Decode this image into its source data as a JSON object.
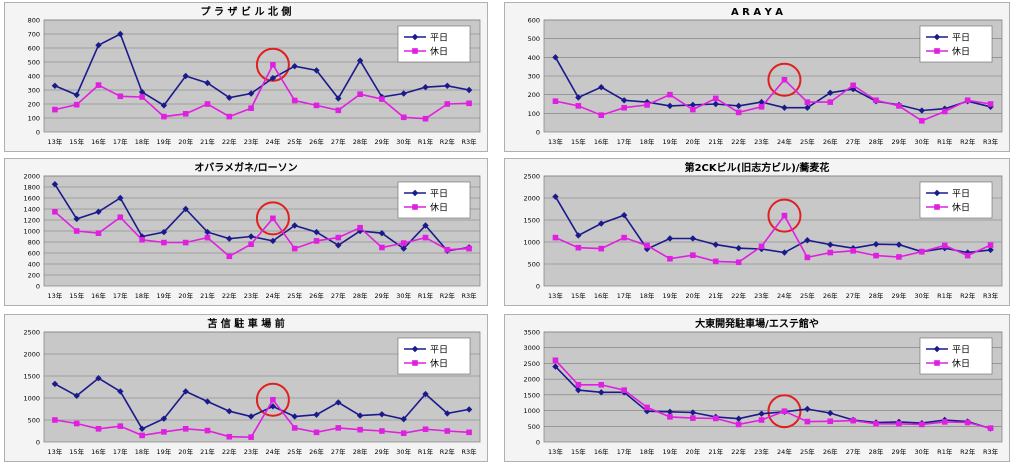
{
  "legend_labels": [
    "平日",
    "休日"
  ],
  "colors": {
    "weekday": "#1a1a8c",
    "holiday": "#e020e0",
    "plot_bg": "#c8c8c8",
    "frame_bg": "#f4f4f4",
    "grid": "#7a7a7a",
    "highlight": "#e02020"
  },
  "chart_data": [
    {
      "type": "line",
      "title": "プ ラ ザ ビ ル 北 側",
      "categories": [
        "13年",
        "15年",
        "16年",
        "17年",
        "18年",
        "19年",
        "20年",
        "21年",
        "22年",
        "23年",
        "24年",
        "25年",
        "26年",
        "27年",
        "28年",
        "29年",
        "30年",
        "R1年",
        "R2年",
        "R3年"
      ],
      "ylim": [
        0,
        800
      ],
      "yticks": [
        0,
        100,
        200,
        300,
        400,
        500,
        600,
        700,
        800
      ],
      "grid": true,
      "legend": "top-right",
      "highlight_category": "24年",
      "series": [
        {
          "name": "平日",
          "values": [
            330,
            265,
            620,
            700,
            285,
            190,
            400,
            350,
            245,
            275,
            385,
            470,
            440,
            240,
            510,
            250,
            275,
            320,
            330,
            300
          ]
        },
        {
          "name": "休日",
          "values": [
            160,
            195,
            335,
            255,
            250,
            110,
            130,
            200,
            110,
            170,
            480,
            225,
            190,
            155,
            270,
            235,
            105,
            95,
            200,
            205
          ]
        }
      ]
    },
    {
      "type": "line",
      "title": "A R A Y A",
      "categories": [
        "13年",
        "15年",
        "16年",
        "17年",
        "18年",
        "19年",
        "20年",
        "21年",
        "22年",
        "23年",
        "24年",
        "25年",
        "26年",
        "27年",
        "28年",
        "29年",
        "30年",
        "R1年",
        "R2年",
        "R3年"
      ],
      "ylim": [
        0,
        600
      ],
      "yticks": [
        0,
        100,
        200,
        300,
        400,
        500,
        600
      ],
      "grid": true,
      "legend": "top-right",
      "highlight_category": "24年",
      "series": [
        {
          "name": "平日",
          "values": [
            400,
            185,
            240,
            170,
            160,
            140,
            145,
            150,
            140,
            160,
            130,
            130,
            210,
            230,
            165,
            145,
            115,
            125,
            165,
            135
          ]
        },
        {
          "name": "休日",
          "values": [
            165,
            140,
            90,
            130,
            145,
            200,
            120,
            180,
            105,
            135,
            280,
            160,
            160,
            250,
            170,
            140,
            60,
            110,
            170,
            150
          ]
        }
      ]
    },
    {
      "type": "line",
      "title": "オバラメガネ/ローソン",
      "categories": [
        "13年",
        "15年",
        "16年",
        "17年",
        "18年",
        "19年",
        "20年",
        "21年",
        "22年",
        "23年",
        "24年",
        "25年",
        "26年",
        "27年",
        "28年",
        "29年",
        "30年",
        "R1年",
        "R2年",
        "R3年"
      ],
      "ylim": [
        0,
        2000
      ],
      "yticks": [
        0,
        200,
        400,
        600,
        800,
        1000,
        1200,
        1400,
        1600,
        1800,
        2000
      ],
      "grid": true,
      "legend": "top-right",
      "highlight_category": "24年",
      "series": [
        {
          "name": "平日",
          "values": [
            1850,
            1220,
            1350,
            1600,
            900,
            980,
            1400,
            980,
            860,
            900,
            820,
            1100,
            980,
            740,
            1000,
            960,
            680,
            1100,
            640,
            700
          ]
        },
        {
          "name": "休日",
          "values": [
            1350,
            1000,
            960,
            1250,
            840,
            790,
            790,
            880,
            540,
            760,
            1230,
            680,
            820,
            880,
            1060,
            700,
            780,
            880,
            660,
            680
          ]
        }
      ]
    },
    {
      "type": "line",
      "title": "第2CKビル(旧志方ビル)/蕎麦花",
      "categories": [
        "13年",
        "15年",
        "16年",
        "17年",
        "18年",
        "19年",
        "20年",
        "21年",
        "22年",
        "23年",
        "24年",
        "25年",
        "26年",
        "27年",
        "28年",
        "29年",
        "30年",
        "R1年",
        "R2年",
        "R3年"
      ],
      "ylim": [
        0,
        2500
      ],
      "yticks": [
        0,
        500,
        1000,
        1500,
        2000,
        2500
      ],
      "grid": true,
      "legend": "top-right",
      "highlight_category": "24年",
      "series": [
        {
          "name": "平日",
          "values": [
            2030,
            1150,
            1420,
            1610,
            840,
            1080,
            1080,
            940,
            860,
            840,
            760,
            1040,
            940,
            860,
            950,
            940,
            780,
            860,
            760,
            820
          ]
        },
        {
          "name": "休日",
          "values": [
            1100,
            870,
            850,
            1100,
            920,
            620,
            700,
            560,
            540,
            900,
            1600,
            650,
            760,
            800,
            690,
            660,
            780,
            920,
            690,
            930
          ]
        }
      ]
    },
    {
      "type": "line",
      "title": "苫 信 駐 車 場 前",
      "categories": [
        "13年",
        "15年",
        "16年",
        "17年",
        "18年",
        "19年",
        "20年",
        "21年",
        "22年",
        "23年",
        "24年",
        "25年",
        "26年",
        "27年",
        "28年",
        "29年",
        "30年",
        "R1年",
        "R2年",
        "R3年"
      ],
      "ylim": [
        0,
        2500
      ],
      "yticks": [
        0,
        500,
        1000,
        1500,
        2000,
        2500
      ],
      "grid": true,
      "legend": "top-right",
      "highlight_category": "24年",
      "series": [
        {
          "name": "平日",
          "values": [
            1320,
            1050,
            1450,
            1150,
            300,
            530,
            1150,
            920,
            700,
            580,
            810,
            580,
            620,
            900,
            600,
            630,
            520,
            1090,
            650,
            740
          ]
        },
        {
          "name": "休日",
          "values": [
            500,
            420,
            300,
            360,
            150,
            230,
            300,
            260,
            120,
            110,
            960,
            320,
            220,
            320,
            280,
            250,
            200,
            290,
            250,
            220
          ]
        }
      ]
    },
    {
      "type": "line",
      "title": "大東開発駐車場/エステ館や",
      "categories": [
        "13年",
        "15年",
        "16年",
        "17年",
        "18年",
        "19年",
        "20年",
        "21年",
        "22年",
        "23年",
        "24年",
        "25年",
        "26年",
        "27年",
        "28年",
        "29年",
        "30年",
        "R1年",
        "R2年",
        "R3年"
      ],
      "ylim": [
        0,
        3500
      ],
      "yticks": [
        0,
        500,
        1000,
        1500,
        2000,
        2500,
        3000,
        3500
      ],
      "grid": true,
      "legend": "top-right",
      "highlight_category": "24年",
      "series": [
        {
          "name": "平日",
          "values": [
            2400,
            1650,
            1580,
            1580,
            980,
            960,
            940,
            800,
            740,
            900,
            960,
            1050,
            920,
            700,
            620,
            640,
            600,
            700,
            650,
            430
          ]
        },
        {
          "name": "休日",
          "values": [
            2600,
            1820,
            1820,
            1650,
            1100,
            800,
            760,
            750,
            560,
            700,
            980,
            650,
            660,
            680,
            580,
            580,
            560,
            640,
            620,
            440
          ]
        }
      ]
    }
  ]
}
